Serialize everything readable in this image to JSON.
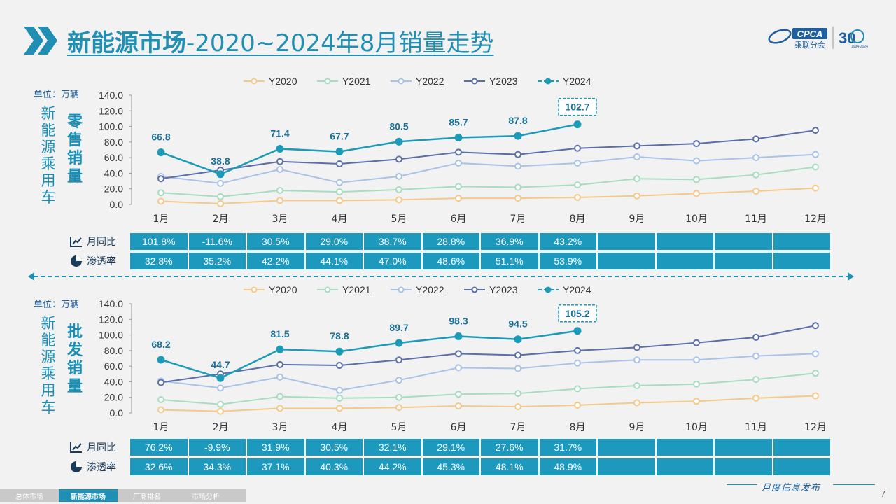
{
  "title": {
    "bold": "新能源市场",
    "rest": "-2020~2024年8月销量走势"
  },
  "logo": {
    "text": "CPCA",
    "sub": "乘联分会",
    "anniv": "30",
    "years": "1994-2024"
  },
  "side_label": "新能源乘用车",
  "unit_label": "单位：万辆",
  "row_labels": {
    "yoy": "月同比",
    "pen": "渗透率"
  },
  "colors": {
    "Y2020": "#f5c98a",
    "Y2021": "#a8dcc0",
    "Y2022": "#a9c3e8",
    "Y2023": "#5a6ea8",
    "Y2024": "#1c9bb8",
    "table": "#1c99bc"
  },
  "chart_data": [
    {
      "type": "line",
      "title": "零售销量",
      "categories": [
        "1月",
        "2月",
        "3月",
        "4月",
        "5月",
        "6月",
        "7月",
        "8月",
        "9月",
        "10月",
        "11月",
        "12月"
      ],
      "ylim": [
        0,
        140
      ],
      "yticks": [
        "140.0",
        "120.0",
        "100.0",
        "80.0",
        "60.0",
        "40.0",
        "20.0",
        "0.0"
      ],
      "series": [
        {
          "name": "Y2020",
          "values": [
            4,
            1,
            5,
            5,
            6,
            8,
            8,
            9,
            11,
            14,
            17,
            21
          ]
        },
        {
          "name": "Y2021",
          "values": [
            15,
            10,
            18,
            16,
            19,
            23,
            22,
            25,
            33,
            32,
            38,
            48
          ]
        },
        {
          "name": "Y2022",
          "values": [
            36,
            27,
            45,
            28,
            36,
            53,
            49,
            53,
            61,
            56,
            60,
            64
          ]
        },
        {
          "name": "Y2023",
          "values": [
            33,
            44,
            55,
            52,
            58,
            67,
            64,
            72,
            75,
            78,
            84,
            95
          ]
        },
        {
          "name": "Y2024",
          "values": [
            66.8,
            38.8,
            71.4,
            67.7,
            80.5,
            85.7,
            87.8,
            102.7,
            null,
            null,
            null,
            null
          ]
        }
      ],
      "labels_2024": [
        "66.8",
        "38.8",
        "71.4",
        "67.7",
        "80.5",
        "85.7",
        "87.8",
        "102.7"
      ],
      "table": {
        "yoy": [
          "101.8%",
          "-11.6%",
          "30.5%",
          "29.0%",
          "38.7%",
          "28.8%",
          "36.9%",
          "43.2%",
          "",
          "",
          "",
          ""
        ],
        "pen": [
          "32.8%",
          "35.2%",
          "42.2%",
          "44.1%",
          "47.0%",
          "48.6%",
          "51.1%",
          "53.9%",
          "",
          "",
          "",
          ""
        ]
      }
    },
    {
      "type": "line",
      "title": "批发销量",
      "categories": [
        "1月",
        "2月",
        "3月",
        "4月",
        "5月",
        "6月",
        "7月",
        "8月",
        "9月",
        "10月",
        "11月",
        "12月"
      ],
      "ylim": [
        0,
        140
      ],
      "yticks": [
        "140.0",
        "120.0",
        "100.0",
        "80.0",
        "60.0",
        "40.0",
        "20.0",
        "0.0"
      ],
      "series": [
        {
          "name": "Y2020",
          "values": [
            4,
            2,
            6,
            6,
            7,
            9,
            8,
            10,
            13,
            15,
            19,
            22
          ]
        },
        {
          "name": "Y2021",
          "values": [
            17,
            11,
            21,
            19,
            20,
            24,
            25,
            31,
            35,
            37,
            43,
            51
          ]
        },
        {
          "name": "Y2022",
          "values": [
            41,
            32,
            46,
            29,
            42,
            58,
            57,
            64,
            68,
            68,
            73,
            76
          ]
        },
        {
          "name": "Y2023",
          "values": [
            39,
            50,
            62,
            61,
            68,
            76,
            74,
            80,
            84,
            90,
            97,
            112
          ]
        },
        {
          "name": "Y2024",
          "values": [
            68.2,
            44.7,
            81.5,
            78.8,
            89.7,
            98.3,
            94.5,
            105.2,
            null,
            null,
            null,
            null
          ]
        }
      ],
      "labels_2024": [
        "68.2",
        "44.7",
        "81.5",
        "78.8",
        "89.7",
        "98.3",
        "94.5",
        "105.2"
      ],
      "table": {
        "yoy": [
          "76.2%",
          "-9.9%",
          "31.9%",
          "30.5%",
          "32.1%",
          "29.1%",
          "27.6%",
          "31.7%",
          "",
          "",
          "",
          ""
        ],
        "pen": [
          "32.6%",
          "34.3%",
          "37.1%",
          "40.3%",
          "44.2%",
          "45.3%",
          "48.1%",
          "48.9%",
          "",
          "",
          "",
          ""
        ]
      }
    }
  ],
  "bottom_tabs": [
    "总体市场",
    "新能源市场",
    "厂商排名",
    "市场分析"
  ],
  "active_tab": "新能源市场",
  "footer_text": "月度信息发布",
  "page_number": "7"
}
